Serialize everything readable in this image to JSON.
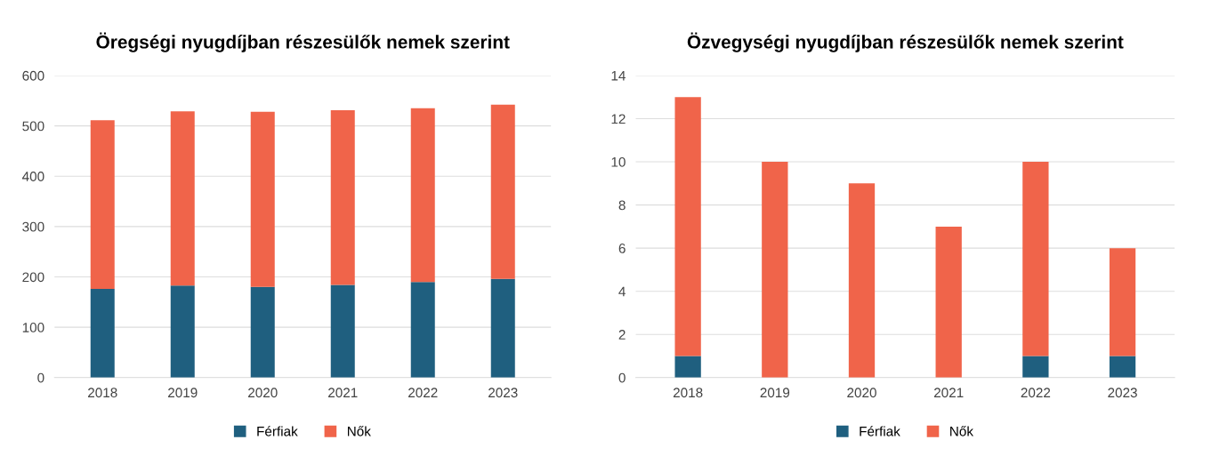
{
  "chart_data": [
    {
      "type": "bar",
      "title": "Öregségi nyugdíjban részesülők nemek szerint",
      "categories": [
        "2018",
        "2019",
        "2020",
        "2021",
        "2022",
        "2023"
      ],
      "stacked": true,
      "ylim": [
        0,
        600
      ],
      "yticks": [
        0,
        100,
        200,
        300,
        400,
        500,
        600
      ],
      "grid": "y",
      "legend": "bottom",
      "series": [
        {
          "name": "Férfiak",
          "color": "#1f5f7f",
          "values": [
            176,
            183,
            180,
            184,
            190,
            196
          ]
        },
        {
          "name": "Nők",
          "color": "#f0644a",
          "values": [
            335,
            346,
            348,
            347,
            345,
            346
          ]
        }
      ]
    },
    {
      "type": "bar",
      "title": "Özvegységi nyugdíjban részesülők nemek szerint",
      "categories": [
        "2018",
        "2019",
        "2020",
        "2021",
        "2022",
        "2023"
      ],
      "stacked": true,
      "ylim": [
        0,
        14
      ],
      "yticks": [
        0,
        2,
        4,
        6,
        8,
        10,
        12,
        14
      ],
      "grid": "y",
      "legend": "bottom",
      "series": [
        {
          "name": "Férfiak",
          "color": "#1f5f7f",
          "values": [
            1,
            0,
            0,
            0,
            1,
            1
          ]
        },
        {
          "name": "Nők",
          "color": "#f0644a",
          "values": [
            12,
            10,
            9,
            7,
            9,
            5
          ]
        }
      ]
    }
  ]
}
